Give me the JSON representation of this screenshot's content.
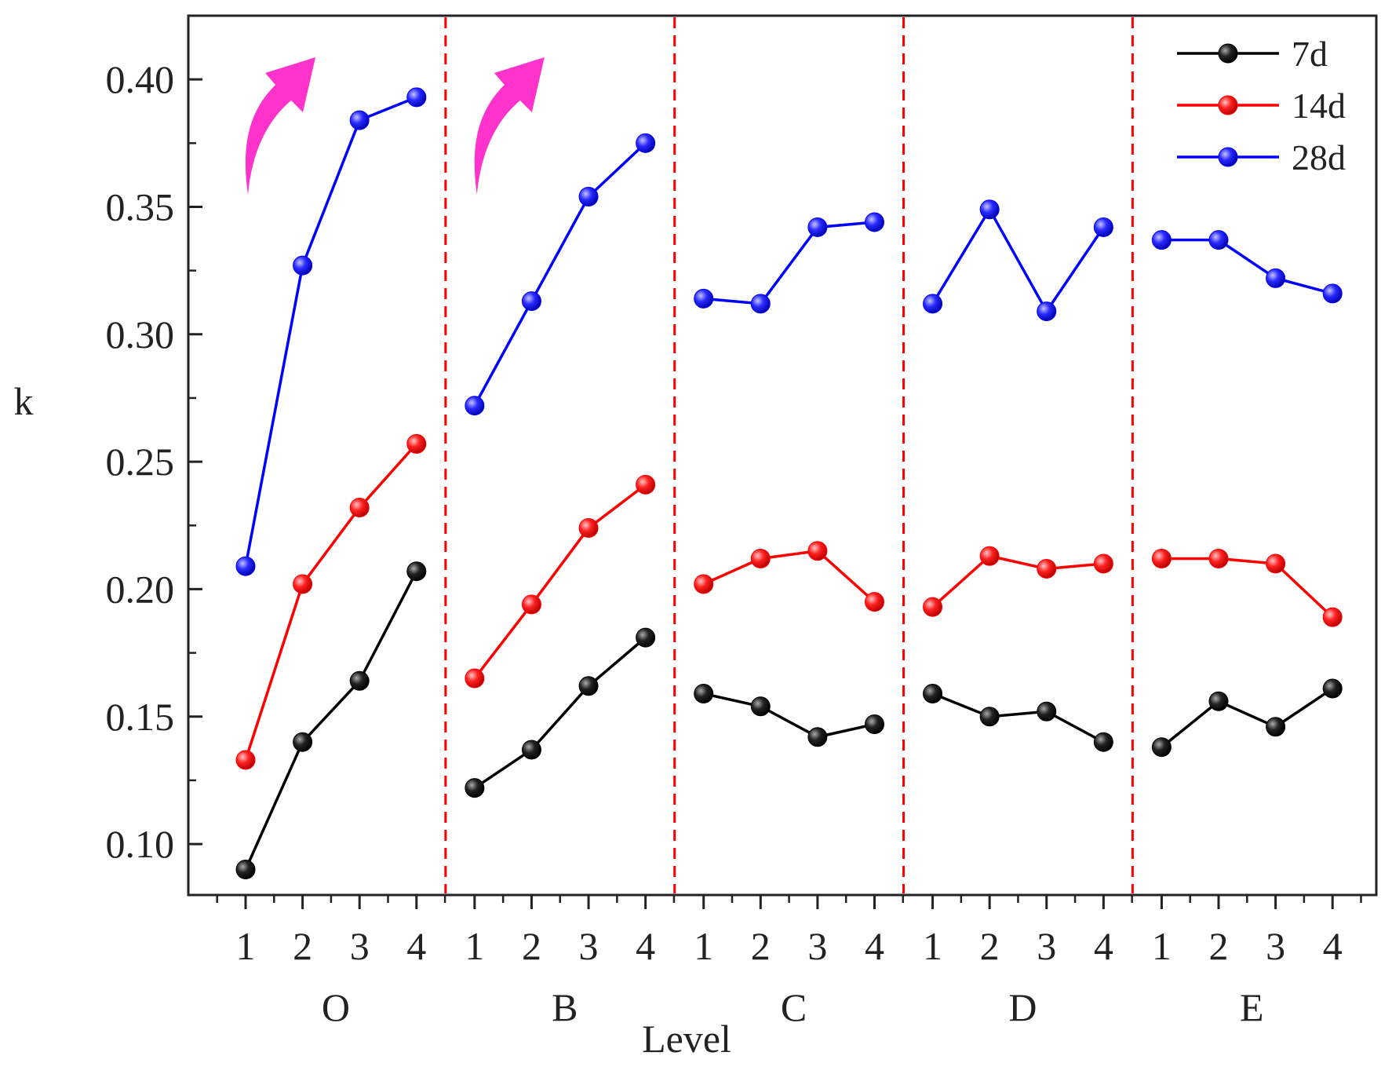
{
  "chart_data": {
    "type": "line",
    "title": "",
    "xlabel": "Level",
    "ylabel": "k",
    "ylim": [
      0.08,
      0.425
    ],
    "yticks": [
      "0.10",
      "0.15",
      "0.20",
      "0.25",
      "0.30",
      "0.35",
      "0.40"
    ],
    "grid": false,
    "legend_position": "top-right",
    "groups": [
      "O",
      "B",
      "C",
      "D",
      "E"
    ],
    "levels": [
      "1",
      "2",
      "3",
      "4"
    ],
    "series": [
      {
        "name": "7d",
        "color": "#000000",
        "values": [
          [
            0.09,
            0.14,
            0.164,
            0.207
          ],
          [
            0.122,
            0.137,
            0.162,
            0.181
          ],
          [
            0.159,
            0.154,
            0.142,
            0.147
          ],
          [
            0.159,
            0.15,
            0.152,
            0.14
          ],
          [
            0.138,
            0.156,
            0.146,
            0.161
          ]
        ]
      },
      {
        "name": "14d",
        "color": "#ff0000",
        "values": [
          [
            0.133,
            0.202,
            0.232,
            0.257
          ],
          [
            0.165,
            0.194,
            0.224,
            0.241
          ],
          [
            0.202,
            0.212,
            0.215,
            0.195
          ],
          [
            0.193,
            0.213,
            0.208,
            0.21
          ],
          [
            0.212,
            0.212,
            0.21,
            0.189
          ]
        ]
      },
      {
        "name": "28d",
        "color": "#0000ff",
        "values": [
          [
            0.209,
            0.327,
            0.384,
            0.393
          ],
          [
            0.272,
            0.313,
            0.354,
            0.375
          ],
          [
            0.314,
            0.312,
            0.342,
            0.344
          ],
          [
            0.312,
            0.349,
            0.309,
            0.342
          ],
          [
            0.337,
            0.337,
            0.322,
            0.316
          ]
        ]
      }
    ],
    "annotations": [
      {
        "type": "trend-arrow",
        "group": "O",
        "color": "#ff33cc"
      },
      {
        "type": "trend-arrow",
        "group": "B",
        "color": "#ff33cc"
      }
    ],
    "separator_color": "#ff0000"
  }
}
